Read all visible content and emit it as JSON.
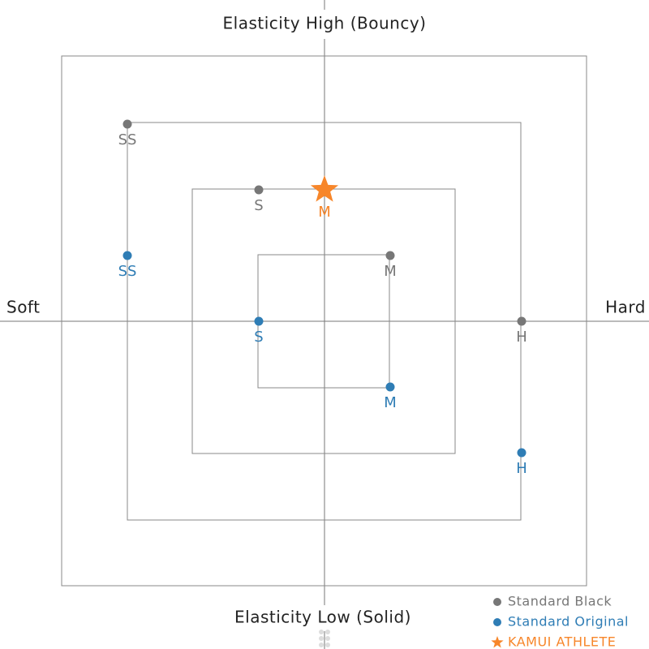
{
  "chart_data": {
    "type": "scatter",
    "y_top_label": "Elasticity High (Bouncy)",
    "y_bottom_label": "Elasticity Low (Solid)",
    "x_left_label": "Soft",
    "x_right_label": "Hard",
    "xlim": [
      -4,
      4
    ],
    "ylim": [
      -4,
      4
    ],
    "series": [
      {
        "name": "Standard Black",
        "color": "#777777",
        "marker": "circle",
        "x": [
          -3,
          -1,
          1,
          3
        ],
        "values": [
          3,
          2,
          1,
          0
        ],
        "labels": [
          "SS",
          "S",
          "M",
          "H"
        ]
      },
      {
        "name": "Standard Original",
        "color": "#2f7db5",
        "marker": "circle",
        "x": [
          -3,
          -1,
          1,
          3
        ],
        "values": [
          1,
          0,
          -1,
          -2
        ],
        "labels": [
          "SS",
          "S",
          "M",
          "H"
        ]
      },
      {
        "name": "KAMUI ATHLETE",
        "color": "#f7862a",
        "marker": "star",
        "x": [
          0
        ],
        "values": [
          2
        ],
        "labels": [
          "M"
        ]
      }
    ]
  }
}
